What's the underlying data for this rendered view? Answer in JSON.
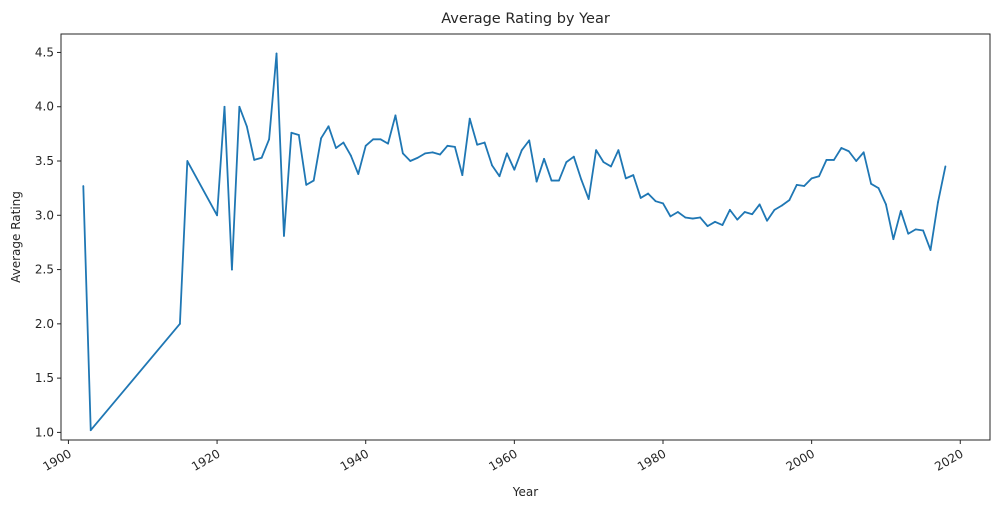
{
  "chart_data": {
    "type": "line",
    "title": "Average Rating by Year",
    "xlabel": "Year",
    "ylabel": "Average Rating",
    "xlim": [
      1899,
      2024
    ],
    "ylim": [
      0.93,
      4.67
    ],
    "xticks": [
      1900,
      1920,
      1940,
      1960,
      1980,
      2000,
      2020
    ],
    "xtick_labels": [
      "1900",
      "1920",
      "1940",
      "1960",
      "1980",
      "2000",
      "2020"
    ],
    "yticks": [
      1.0,
      1.5,
      2.0,
      2.5,
      3.0,
      3.5,
      4.0,
      4.5
    ],
    "ytick_labels": [
      "1.0",
      "1.5",
      "2.0",
      "2.5",
      "3.0",
      "3.5",
      "4.0",
      "4.5"
    ],
    "grid": false,
    "line_color": "#1f77b4",
    "series": [
      {
        "x": [
          1902,
          1903,
          1915,
          1916,
          1920,
          1921,
          1922,
          1923,
          1924,
          1925,
          1926,
          1927,
          1928,
          1929,
          1930,
          1931,
          1932,
          1933,
          1934,
          1935,
          1936,
          1937,
          1938,
          1939,
          1940,
          1941,
          1942,
          1943,
          1944,
          1945,
          1946,
          1947,
          1948,
          1949,
          1950,
          1951,
          1952,
          1953,
          1954,
          1955,
          1956,
          1957,
          1958,
          1959,
          1960,
          1961,
          1962,
          1963,
          1964,
          1965,
          1966,
          1967,
          1968,
          1969,
          1970,
          1971,
          1972,
          1973,
          1974,
          1975,
          1976,
          1977,
          1978,
          1979,
          1980,
          1981,
          1982,
          1983,
          1984,
          1985,
          1986,
          1987,
          1988,
          1989,
          1990,
          1991,
          1992,
          1993,
          1994,
          1995,
          1996,
          1997,
          1998,
          1999,
          2000,
          2001,
          2002,
          2003,
          2004,
          2005,
          2006,
          2007,
          2008,
          2009,
          2010,
          2011,
          2012,
          2013,
          2014,
          2015,
          2016,
          2017,
          2018
        ],
        "y": [
          3.27,
          1.02,
          2.0,
          3.5,
          3.0,
          4.0,
          2.5,
          4.0,
          3.82,
          3.51,
          3.53,
          3.7,
          4.49,
          2.81,
          3.76,
          3.74,
          3.28,
          3.32,
          3.71,
          3.82,
          3.62,
          3.67,
          3.55,
          3.38,
          3.64,
          3.7,
          3.7,
          3.66,
          3.92,
          3.57,
          3.5,
          3.53,
          3.57,
          3.58,
          3.56,
          3.64,
          3.63,
          3.37,
          3.89,
          3.65,
          3.67,
          3.46,
          3.36,
          3.57,
          3.42,
          3.6,
          3.69,
          3.31,
          3.52,
          3.32,
          3.32,
          3.49,
          3.54,
          3.33,
          3.15,
          3.6,
          3.49,
          3.45,
          3.6,
          3.34,
          3.37,
          3.16,
          3.2,
          3.13,
          3.11,
          2.99,
          3.03,
          2.98,
          2.97,
          2.98,
          2.9,
          2.94,
          2.91,
          3.05,
          2.96,
          3.03,
          3.01,
          3.1,
          2.95,
          3.05,
          3.09,
          3.14,
          3.28,
          3.27,
          3.34,
          3.36,
          3.51,
          3.51,
          3.62,
          3.59,
          3.5,
          3.58,
          3.29,
          3.25,
          3.1,
          2.78,
          3.04,
          2.83,
          2.87,
          2.86,
          2.68,
          3.12,
          3.45
        ]
      }
    ]
  }
}
